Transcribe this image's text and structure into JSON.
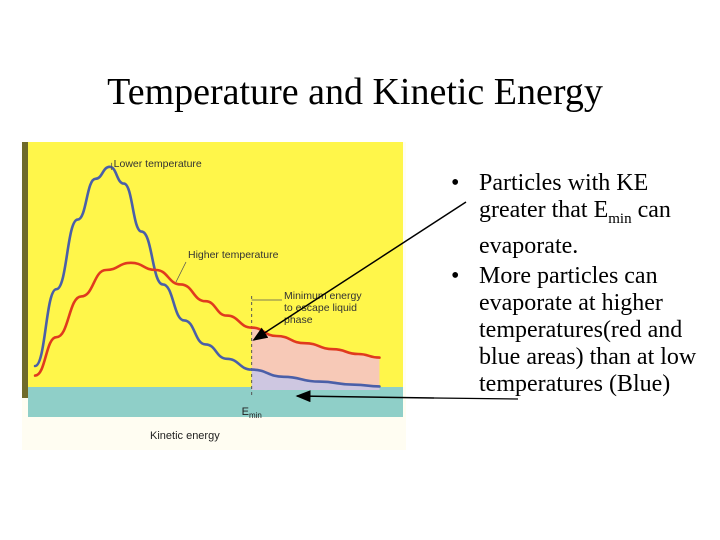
{
  "slide": {
    "title": "Temperature and Kinetic Energy"
  },
  "bullets": [
    {
      "text_before_sub": "Particles with KE greater that E",
      "subscript": "min",
      "text_after_sub": " can evaporate."
    },
    {
      "text": " More particles can evaporate at higher temperatures(red and blue areas) than at low temperatures (Blue)"
    }
  ],
  "chart_data": {
    "type": "line",
    "xlabel": "Kinetic energy",
    "ylabel": "",
    "xlim": [
      0,
      10
    ],
    "ylim": [
      0,
      10
    ],
    "threshold": {
      "label_main": "E",
      "label_sub": "min",
      "x": 6.3
    },
    "threshold_annotation": [
      "Minimum energy",
      "to escape liquid",
      "phase"
    ],
    "series": [
      {
        "name": "Lower temperature",
        "color": "#4a5fa8",
        "points": [
          [
            0.2,
            1.0
          ],
          [
            0.8,
            4.2
          ],
          [
            1.4,
            7.1
          ],
          [
            1.9,
            8.8
          ],
          [
            2.3,
            9.3
          ],
          [
            2.7,
            8.6
          ],
          [
            3.2,
            6.6
          ],
          [
            3.8,
            4.4
          ],
          [
            4.4,
            2.9
          ],
          [
            5.0,
            1.9
          ],
          [
            5.6,
            1.3
          ],
          [
            6.3,
            0.85
          ],
          [
            7.2,
            0.55
          ],
          [
            8.2,
            0.35
          ],
          [
            9.2,
            0.22
          ],
          [
            9.9,
            0.15
          ]
        ]
      },
      {
        "name": "Higher temperature",
        "color": "#e03a1e",
        "points": [
          [
            0.2,
            0.6
          ],
          [
            0.8,
            2.2
          ],
          [
            1.5,
            3.9
          ],
          [
            2.2,
            5.0
          ],
          [
            2.9,
            5.3
          ],
          [
            3.6,
            5.0
          ],
          [
            4.3,
            4.4
          ],
          [
            5.0,
            3.7
          ],
          [
            5.6,
            3.1
          ],
          [
            6.3,
            2.6
          ],
          [
            7.0,
            2.25
          ],
          [
            7.8,
            1.95
          ],
          [
            8.6,
            1.7
          ],
          [
            9.3,
            1.5
          ],
          [
            9.9,
            1.35
          ]
        ]
      }
    ],
    "colors": {
      "background": "#fff64a",
      "axis": "#8fcfc8",
      "area_fill": "#f7c9b7",
      "arrow": "#000000"
    }
  }
}
